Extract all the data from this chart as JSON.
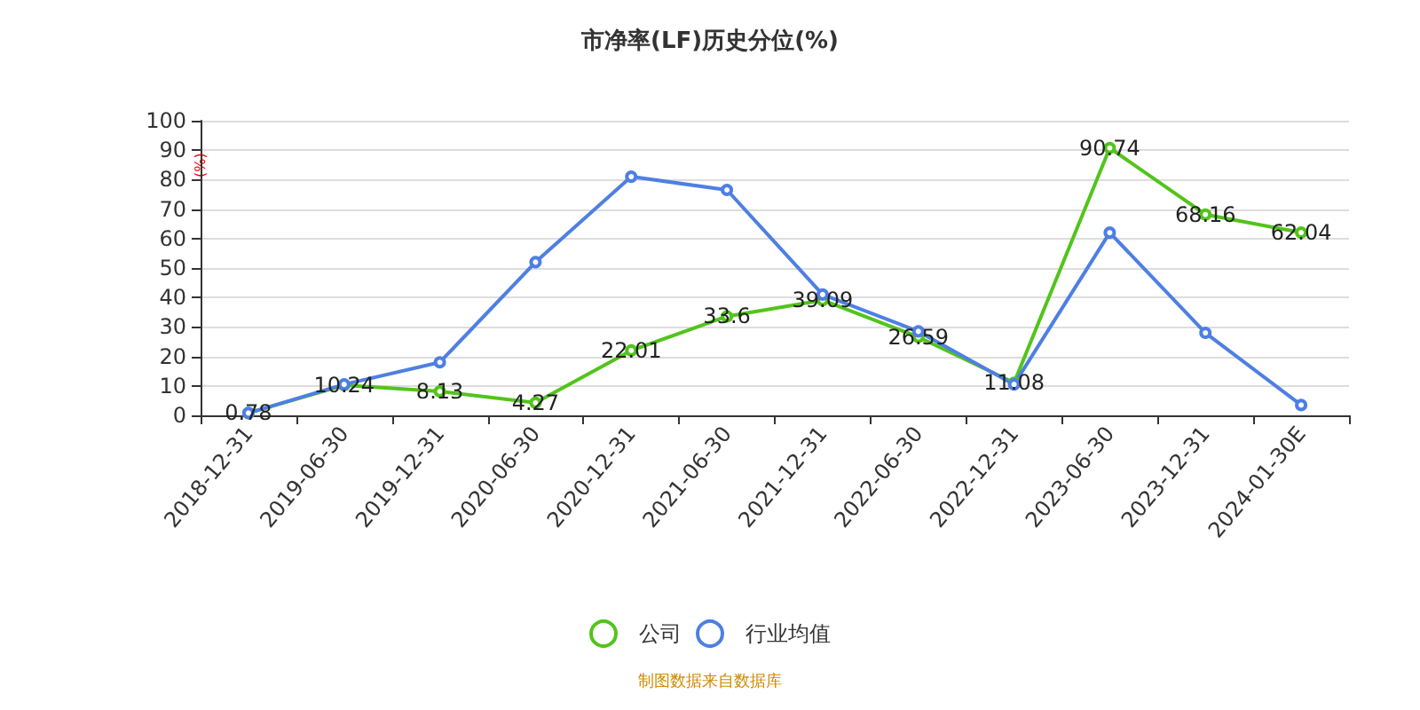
{
  "chart_data": {
    "type": "line",
    "title": "市净率(LF)历史分位(%)",
    "ylabel": "(%)",
    "categories": [
      "2018-12-31",
      "2019-06-30",
      "2019-12-31",
      "2020-06-30",
      "2020-12-31",
      "2021-06-30",
      "2021-12-31",
      "2022-06-30",
      "2022-12-31",
      "2023-06-30",
      "2023-12-31",
      "2024-01-30E"
    ],
    "series": [
      {
        "name": "公司",
        "color": "#52c41a",
        "values": [
          0.78,
          10.24,
          8.13,
          4.27,
          22.01,
          33.6,
          39.09,
          26.59,
          11.08,
          90.74,
          68.16,
          62.04
        ],
        "value_labels": [
          "0.78",
          "10.24",
          "8.13",
          "4.27",
          "22.01",
          "33.6",
          "39.09",
          "26.59",
          "11.08",
          "90.74",
          "68.16",
          "62.04"
        ]
      },
      {
        "name": "行业均值",
        "color": "#4e7fe3",
        "values": [
          0.8,
          10.5,
          18,
          52,
          81,
          76.5,
          41,
          28.5,
          10.5,
          62,
          28,
          3.5
        ]
      }
    ],
    "ylim": [
      0,
      100
    ],
    "yticks": [
      0,
      10,
      20,
      30,
      40,
      50,
      60,
      70,
      80,
      90,
      100
    ],
    "grid": "y",
    "legend": "bottom",
    "marker": "circle",
    "annotations": [
      "制图数据来自数据库"
    ]
  }
}
